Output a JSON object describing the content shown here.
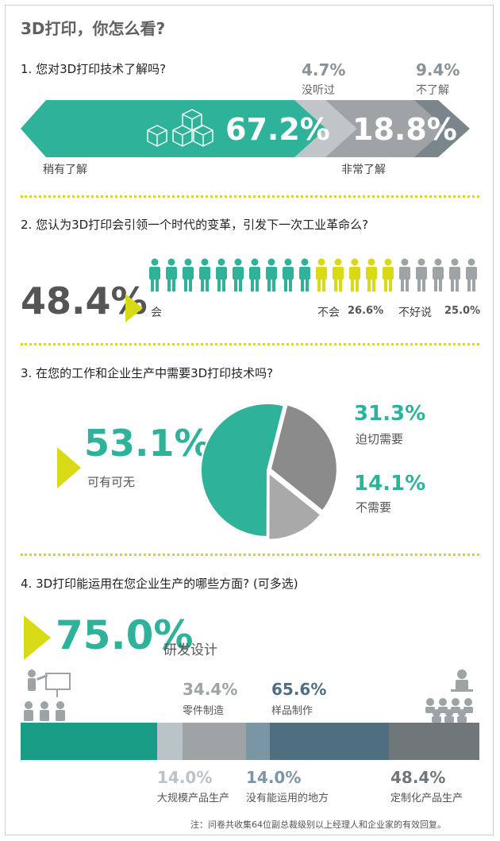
{
  "title": "3D打印，你怎么看?",
  "colors": {
    "teal": "#2fb29a",
    "grey_light": "#c0c5c8",
    "grey_mid": "#9ea3a6",
    "grey_dark": "#7a858c",
    "lime": "#d8da16",
    "slate": "#4f6f80"
  },
  "q1": {
    "question": "1. 您对3D打印技术了解吗?",
    "items": [
      {
        "label": "稍有了解",
        "value": "67.2%"
      },
      {
        "label": "非常了解",
        "value": "18.8%"
      },
      {
        "label": "没听过",
        "value": "4.7%"
      },
      {
        "label": "不了解",
        "value": "9.4%"
      }
    ]
  },
  "q2": {
    "question": "2. 您认为3D打印会引领一个时代的变革，引发下一次工业革命么?",
    "big_value": "48.4%",
    "yes_label": "会",
    "no_label": "不会",
    "no_value": "26.6%",
    "unsure_label": "不好说",
    "unsure_value": "25.0%"
  },
  "q3": {
    "question": "3. 在您的工作和企业生产中需要3D打印技术吗?",
    "big_value": "53.1%",
    "big_label": "可有可无",
    "urgent_value": "31.3%",
    "urgent_label": "迫切需要",
    "no_need_value": "14.1%",
    "no_need_label": "不需要"
  },
  "q4": {
    "question": "4. 3D打印能运用在您企业生产的哪些方面? (可多选)",
    "big_value": "75.0%",
    "big_label": "研发设计",
    "top": [
      {
        "value": "34.4%",
        "label": "零件制造"
      },
      {
        "value": "65.6%",
        "label": "样品制作"
      }
    ],
    "bottom": [
      {
        "value": "14.0%",
        "label": "大规模产品生产"
      },
      {
        "value": "14.0%",
        "label": "没有能运用的地方"
      },
      {
        "value": "48.4%",
        "label": "定制化产品生产"
      }
    ]
  },
  "note": "注：问卷共收集64位副总裁级别以上经理人和企业家的有效回复。",
  "chart_data": [
    {
      "type": "bar",
      "categories": [
        "稍有了解",
        "非常了解",
        "没听过",
        "不了解"
      ],
      "values": [
        67.2,
        18.8,
        4.7,
        9.4
      ]
    },
    {
      "type": "bar",
      "categories": [
        "会",
        "不会",
        "不好说"
      ],
      "values": [
        48.4,
        26.6,
        25.0
      ]
    },
    {
      "type": "pie",
      "categories": [
        "可有可无",
        "迫切需要",
        "不需要"
      ],
      "values": [
        53.1,
        31.3,
        14.1
      ]
    },
    {
      "type": "bar",
      "categories": [
        "研发设计",
        "零件制造",
        "样品制作",
        "大规模产品生产",
        "没有能运用的地方",
        "定制化产品生产"
      ],
      "values": [
        75.0,
        34.4,
        65.6,
        14.0,
        14.0,
        48.4
      ]
    }
  ]
}
